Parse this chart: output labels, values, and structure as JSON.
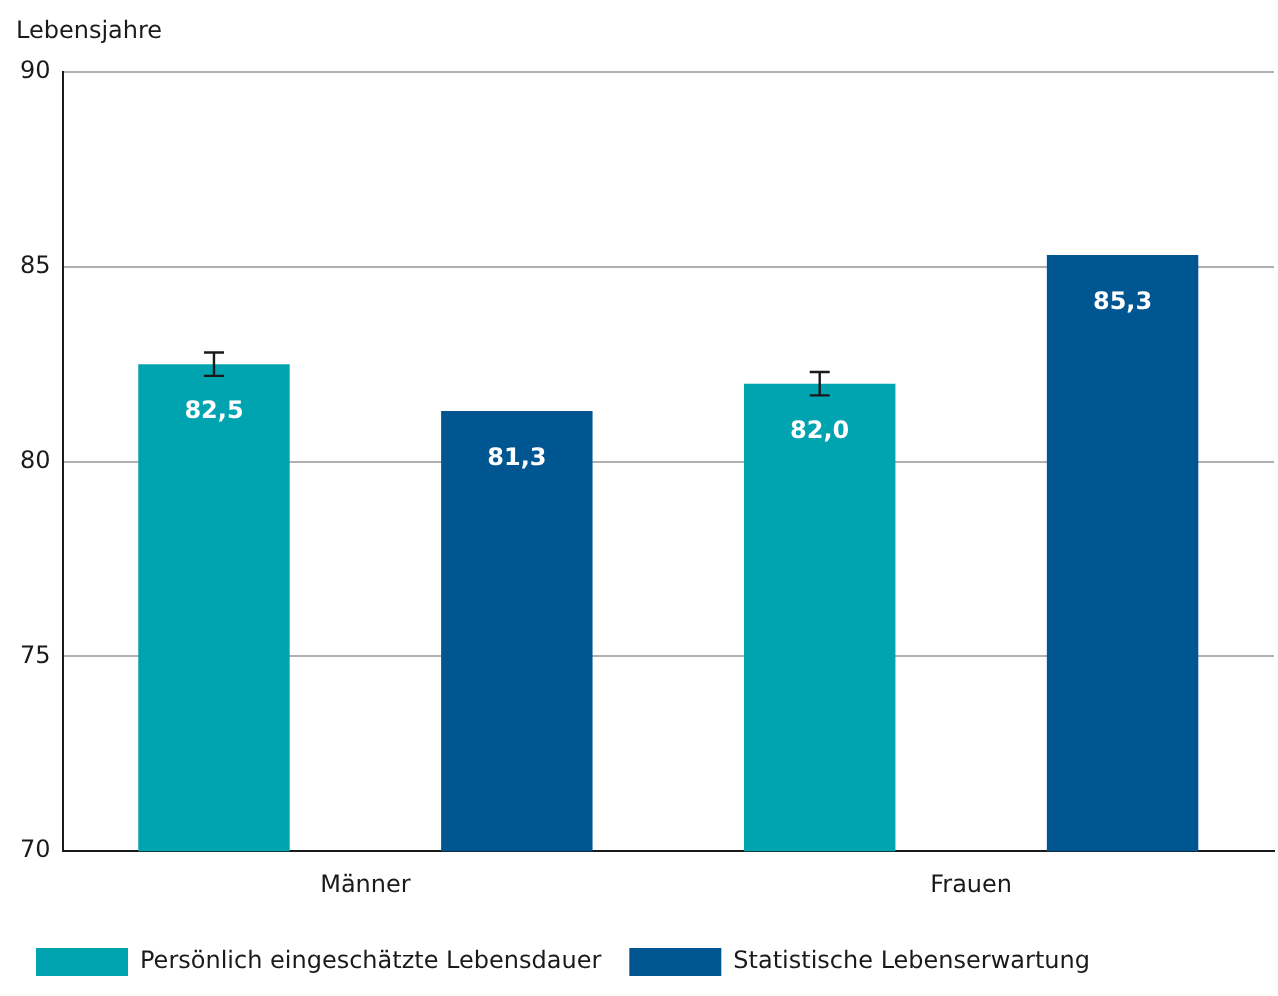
{
  "chart_data": {
    "type": "bar",
    "ylabel": "Lebensjahre",
    "categories": [
      "Männer",
      "Frauen"
    ],
    "series": [
      {
        "name": "Persönlich eingeschätzte Lebensdauer",
        "color": "#00a3b0",
        "values": [
          82.5,
          82.0
        ],
        "errors": [
          0.3,
          0.3
        ],
        "value_labels": [
          "82,5",
          "82,0"
        ]
      },
      {
        "name": "Statistische Lebenserwartung",
        "color": "#005691",
        "values": [
          81.3,
          85.3
        ],
        "value_labels": [
          "81,3",
          "85,3"
        ]
      }
    ],
    "ylim": [
      70,
      90
    ],
    "yticks": [
      70,
      75,
      80,
      85,
      90
    ],
    "grid": "y",
    "legend": "bottom"
  }
}
